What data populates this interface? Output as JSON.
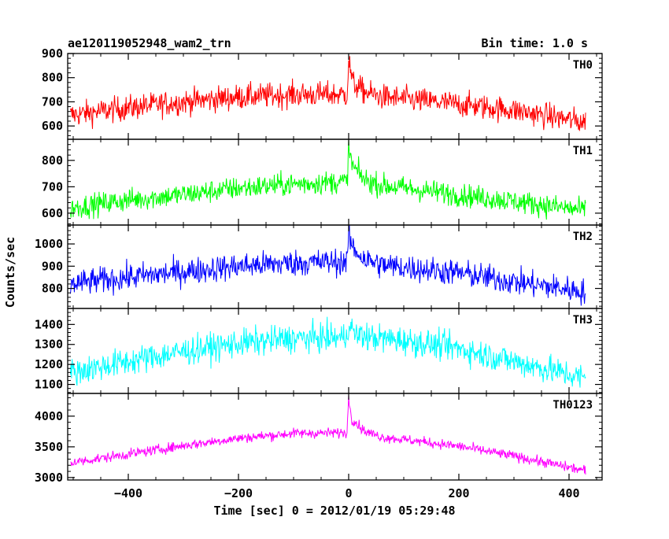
{
  "header": {
    "title": "ae120119052948_wam2_trn",
    "bin_time": "Bin time: 1.0 s"
  },
  "chart_data": {
    "type": "line",
    "title": "ae120119052948_wam2_trn",
    "xlabel": "Time [sec] 0 = 2012/01/19 05:29:48",
    "ylabel": "Counts/sec",
    "xlim": [
      -510,
      460
    ],
    "x_ticks": [
      -400,
      -200,
      0,
      200,
      400
    ],
    "x_tick_labels": [
      "−400",
      "−200",
      "0",
      "200",
      "400"
    ],
    "x_data_range": [
      -505,
      430
    ],
    "bin_seconds": 1.0,
    "panels": [
      {
        "name": "TH0",
        "color": "#ff0000",
        "ylim": [
          545,
          900
        ],
        "y_ticks": [
          600,
          700,
          800,
          900
        ],
        "y_tick_labels": [
          "600",
          "700",
          "800",
          "900"
        ],
        "trend": [
          [
            -505,
            645
          ],
          [
            -400,
            675
          ],
          [
            -300,
            700
          ],
          [
            -200,
            720
          ],
          [
            -100,
            730
          ],
          [
            -3,
            730
          ],
          [
            0,
            870
          ],
          [
            8,
            775
          ],
          [
            30,
            740
          ],
          [
            60,
            720
          ],
          [
            100,
            712
          ],
          [
            200,
            690
          ],
          [
            300,
            665
          ],
          [
            430,
            615
          ]
        ],
        "noise": 48
      },
      {
        "name": "TH1",
        "color": "#00ff00",
        "ylim": [
          555,
          880
        ],
        "y_ticks": [
          600,
          700,
          800
        ],
        "y_tick_labels": [
          "600",
          "700",
          "800"
        ],
        "trend": [
          [
            -505,
            620
          ],
          [
            -400,
            650
          ],
          [
            -300,
            670
          ],
          [
            -200,
            695
          ],
          [
            -100,
            710
          ],
          [
            -3,
            720
          ],
          [
            0,
            840
          ],
          [
            8,
            775
          ],
          [
            30,
            725
          ],
          [
            60,
            705
          ],
          [
            100,
            695
          ],
          [
            200,
            670
          ],
          [
            300,
            645
          ],
          [
            430,
            610
          ]
        ],
        "noise": 40
      },
      {
        "name": "TH2",
        "color": "#0000ff",
        "ylim": [
          710,
          1085
        ],
        "y_ticks": [
          800,
          900,
          1000
        ],
        "y_tick_labels": [
          "800",
          "900",
          "1000"
        ],
        "trend": [
          [
            -505,
            820
          ],
          [
            -400,
            850
          ],
          [
            -300,
            875
          ],
          [
            -200,
            900
          ],
          [
            -100,
            915
          ],
          [
            -3,
            920
          ],
          [
            0,
            1040
          ],
          [
            8,
            980
          ],
          [
            30,
            930
          ],
          [
            60,
            905
          ],
          [
            100,
            895
          ],
          [
            200,
            870
          ],
          [
            300,
            830
          ],
          [
            430,
            785
          ]
        ],
        "noise": 55
      },
      {
        "name": "TH3",
        "color": "#00ffff",
        "ylim": [
          1055,
          1480
        ],
        "y_ticks": [
          1100,
          1200,
          1300,
          1400
        ],
        "y_tick_labels": [
          "1100",
          "1200",
          "1300",
          "1400"
        ],
        "trend": [
          [
            -505,
            1160
          ],
          [
            -400,
            1215
          ],
          [
            -300,
            1265
          ],
          [
            -200,
            1305
          ],
          [
            -100,
            1330
          ],
          [
            -3,
            1335
          ],
          [
            0,
            1420
          ],
          [
            10,
            1350
          ],
          [
            40,
            1335
          ],
          [
            100,
            1320
          ],
          [
            200,
            1280
          ],
          [
            300,
            1215
          ],
          [
            430,
            1130
          ]
        ],
        "noise": 65
      },
      {
        "name": "TH0123",
        "color": "#ff00ff",
        "ylim": [
          2960,
          4370
        ],
        "y_ticks": [
          3000,
          3500,
          4000
        ],
        "y_tick_labels": [
          "3000",
          "3500",
          "4000"
        ],
        "trend": [
          [
            -505,
            3240
          ],
          [
            -400,
            3380
          ],
          [
            -300,
            3520
          ],
          [
            -200,
            3640
          ],
          [
            -100,
            3720
          ],
          [
            -3,
            3730
          ],
          [
            0,
            4300
          ],
          [
            6,
            3950
          ],
          [
            30,
            3750
          ],
          [
            60,
            3660
          ],
          [
            100,
            3620
          ],
          [
            200,
            3510
          ],
          [
            300,
            3350
          ],
          [
            430,
            3110
          ]
        ],
        "noise": 75
      }
    ]
  }
}
